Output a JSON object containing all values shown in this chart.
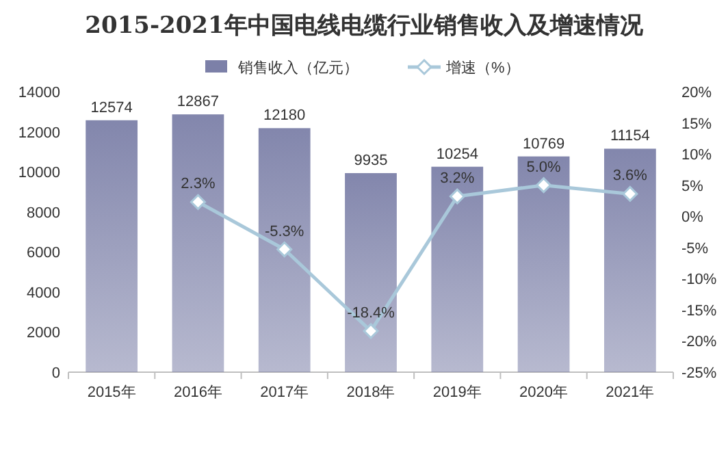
{
  "chart_data": {
    "type": "bar",
    "title": "2015-2021年中国电线电缆行业销售收入及增速情况",
    "categories": [
      "2015年",
      "2016年",
      "2017年",
      "2018年",
      "2019年",
      "2020年",
      "2021年"
    ],
    "series": [
      {
        "name": "销售收入（亿元）",
        "color": "#7c80a8",
        "values": [
          12574,
          12867,
          12180,
          9935,
          10254,
          10769,
          11154
        ],
        "value_labels": [
          "12574",
          "12867",
          "12180",
          "9935",
          "10254",
          "10769",
          "11154"
        ]
      },
      {
        "name": "增速（%）",
        "type": "line",
        "axis": "y2",
        "color": "#a9c8da",
        "values": [
          null,
          2.3,
          -5.3,
          -18.4,
          3.2,
          5.0,
          3.6
        ],
        "value_labels": [
          null,
          "2.3%",
          "-5.3%",
          "-18.4%",
          "3.2%",
          "5.0%",
          "3.6%"
        ]
      }
    ],
    "ylim": [
      0,
      14000
    ],
    "yticks": [
      0,
      2000,
      4000,
      6000,
      8000,
      10000,
      12000,
      14000
    ],
    "y2lim": [
      -25,
      20
    ],
    "y2ticks": [
      {
        "value": -25,
        "label": "-25%"
      },
      {
        "value": -20,
        "label": "-20%"
      },
      {
        "value": -15,
        "label": "-15%"
      },
      {
        "value": -10,
        "label": "-10%"
      },
      {
        "value": -5,
        "label": "-5%"
      },
      {
        "value": 0,
        "label": "0%"
      },
      {
        "value": 5,
        "label": "5%"
      },
      {
        "value": 10,
        "label": "10%"
      },
      {
        "value": 15,
        "label": "15%"
      },
      {
        "value": 20,
        "label": "20%"
      }
    ],
    "legend": "top",
    "marker": "diamond",
    "line_style": "solid"
  }
}
